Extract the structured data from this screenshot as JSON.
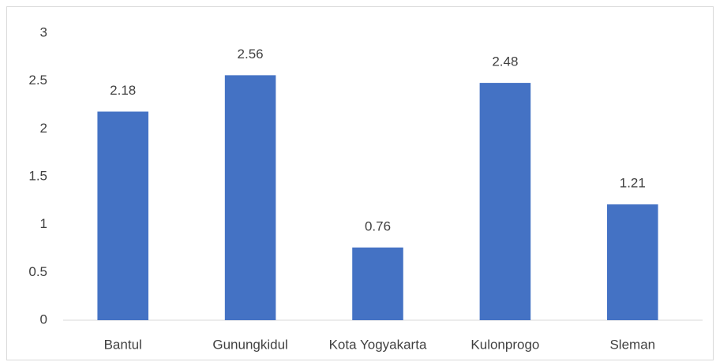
{
  "chart_data": {
    "type": "bar",
    "categories": [
      "Bantul",
      "Gunungkidul",
      "Kota Yogyakarta",
      "Kulonprogo",
      "Sleman"
    ],
    "values": [
      2.18,
      2.56,
      0.76,
      2.48,
      1.21
    ],
    "color": "#4472c4",
    "ylim": [
      0,
      3
    ],
    "yticks": [
      0,
      0.5,
      1,
      1.5,
      2,
      2.5,
      3
    ],
    "grid": false
  }
}
